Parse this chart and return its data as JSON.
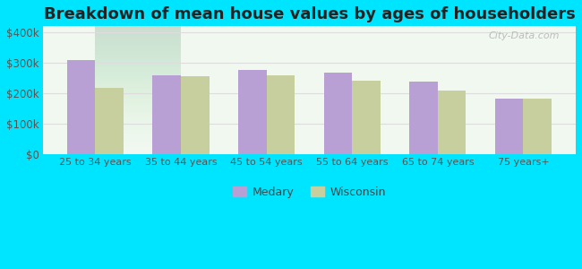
{
  "title": "Breakdown of mean house values by ages of householders",
  "categories": [
    "25 to 34 years",
    "35 to 44 years",
    "45 to 54 years",
    "55 to 64 years",
    "65 to 74 years",
    "75 years+"
  ],
  "medary_values": [
    310000,
    260000,
    278000,
    268000,
    240000,
    183000
  ],
  "wisconsin_values": [
    218000,
    255000,
    258000,
    243000,
    210000,
    182000
  ],
  "medary_color": "#b89fd4",
  "wisconsin_color": "#c8cf9e",
  "background_outer": "#00e5ff",
  "background_inner_top": "#f0f8f0",
  "background_inner_bottom": "#dff0d8",
  "yticks": [
    0,
    100000,
    200000,
    300000,
    400000
  ],
  "ytick_labels": [
    "$0",
    "$100k",
    "$200k",
    "$300k",
    "$400k"
  ],
  "ylim": [
    0,
    420000
  ],
  "legend_labels": [
    "Medary",
    "Wisconsin"
  ],
  "title_fontsize": 13,
  "watermark_text": "City-Data.com"
}
